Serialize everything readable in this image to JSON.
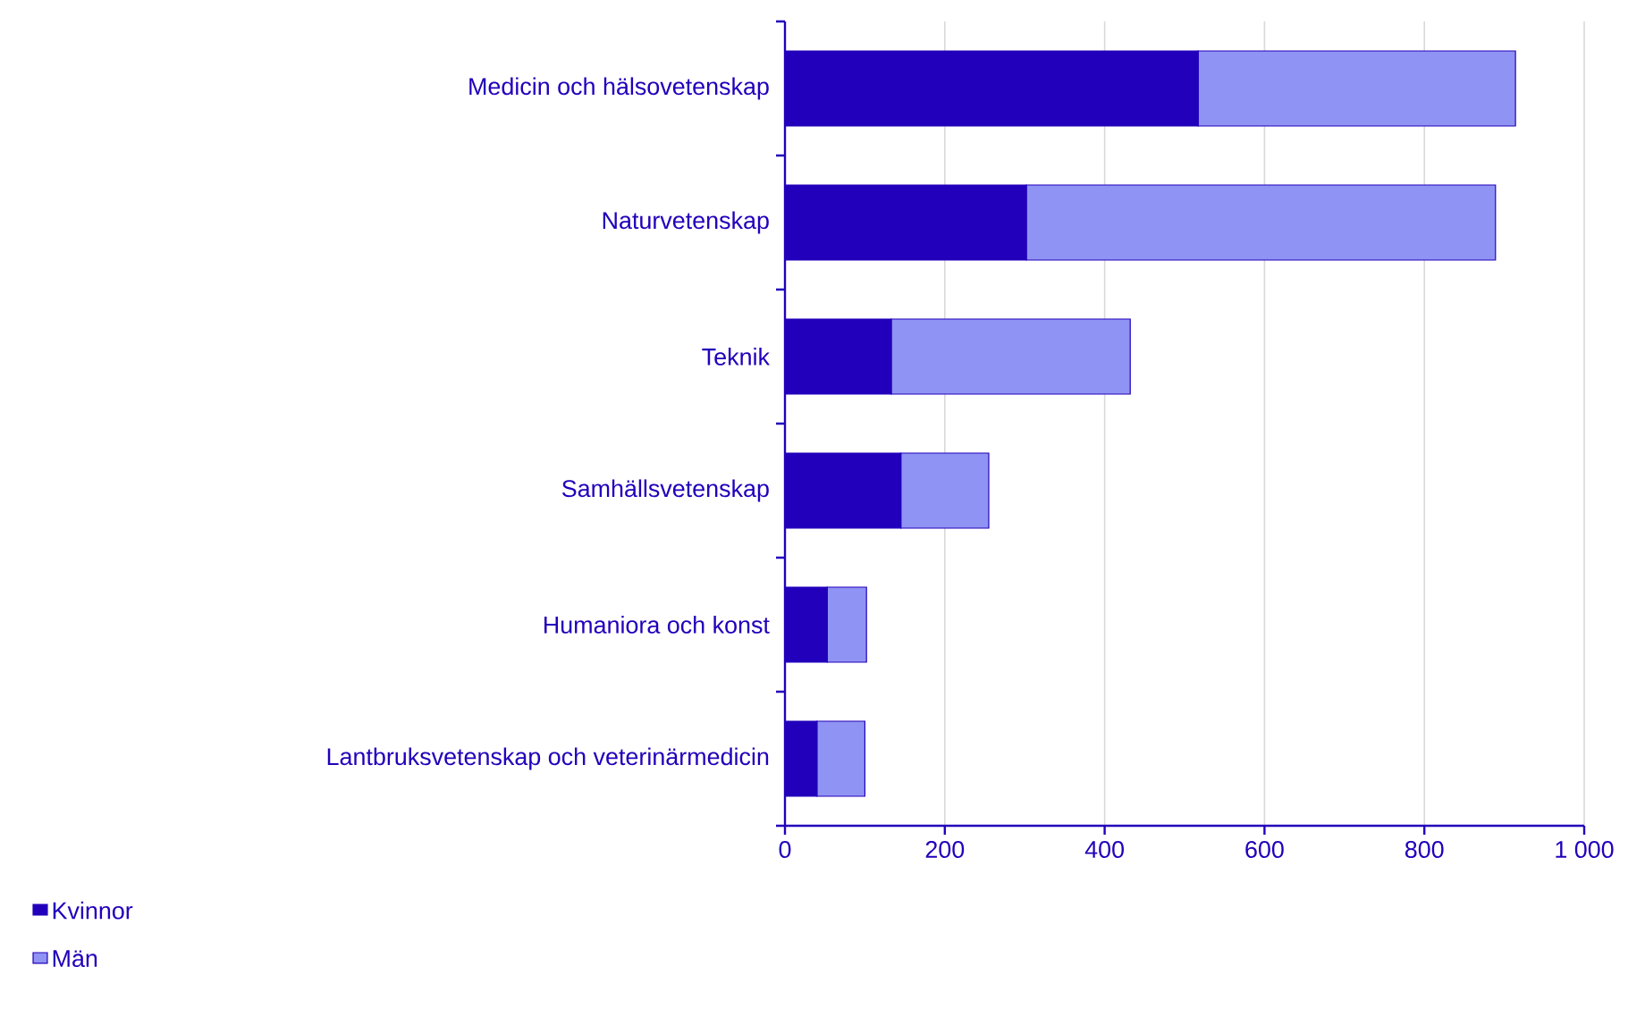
{
  "chart_data": {
    "type": "bar",
    "orientation": "horizontal",
    "stacked": true,
    "categories": [
      "Medicin och hälsovetenskap",
      "Naturvetenskap",
      "Teknik",
      "Samhällsvetenskap",
      "Humaniora och konst",
      "Lantbruksvetenskap och veterinärmedicin"
    ],
    "series": [
      {
        "name": "Kvinnor",
        "color": "#2200bb",
        "values": [
          517,
          302,
          133,
          145,
          53,
          40
        ]
      },
      {
        "name": "Män",
        "color": "#8f93f3",
        "values": [
          397,
          587,
          299,
          110,
          49,
          60
        ]
      }
    ],
    "xlim": [
      0,
      1000
    ],
    "xticks": [
      0,
      200,
      400,
      600,
      800,
      {
        "value": 1000,
        "label": "1 000"
      }
    ],
    "grid": "x",
    "legend": "bottom left"
  }
}
